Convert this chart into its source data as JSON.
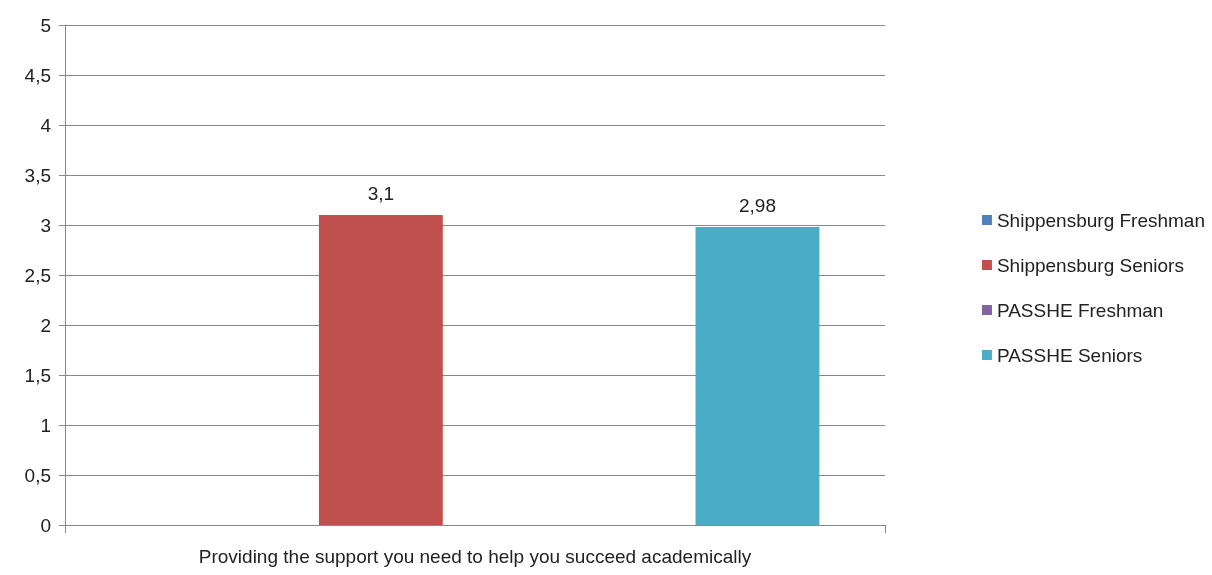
{
  "chart_data": {
    "type": "bar",
    "xlabel": "Providing the support you need to help you succeed academically",
    "categories": [
      null
    ],
    "series": [
      {
        "name": "Shippensburg Freshman",
        "color": "#4f81bd",
        "values": [
          null
        ],
        "value_labels": [
          null
        ]
      },
      {
        "name": "Shippensburg Seniors",
        "color": "#c0504d",
        "values": [
          3.1
        ],
        "value_labels": [
          "3,1"
        ]
      },
      {
        "name": "PASSHE Freshman",
        "color": "#8064a2",
        "values": [
          null
        ],
        "value_labels": [
          null
        ]
      },
      {
        "name": "PASSHE Seniors",
        "color": "#4bacc6",
        "values": [
          2.98
        ],
        "value_labels": [
          "2,98"
        ]
      }
    ],
    "ylim": [
      0,
      5
    ],
    "yticks": [
      0,
      {
        "value": 0.5,
        "label": "0,5"
      },
      1,
      {
        "value": 1.5,
        "label": "1,5"
      },
      2,
      {
        "value": 2.5,
        "label": "2,5"
      },
      3,
      {
        "value": 3.5,
        "label": "3,5"
      },
      4,
      {
        "value": 4.5,
        "label": "4,5"
      },
      5
    ],
    "grid": "y",
    "legend": "right"
  }
}
